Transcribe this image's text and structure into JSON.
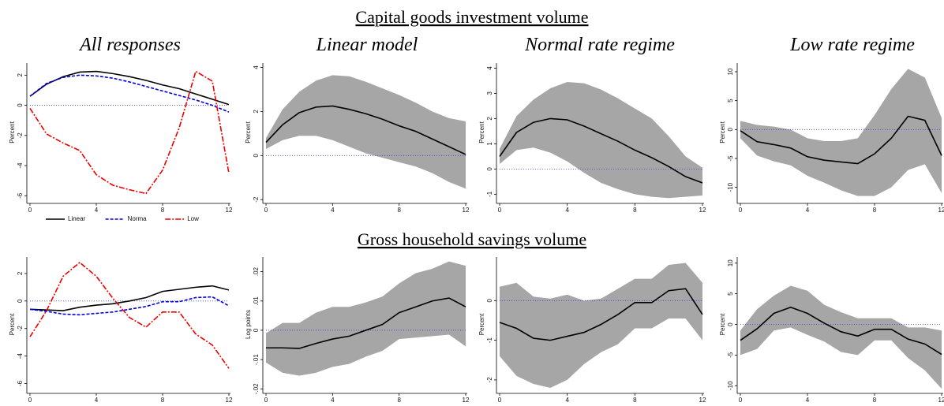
{
  "rows": [
    {
      "title": "Capital goods investment volume"
    },
    {
      "title": "Gross household savings volume"
    }
  ],
  "column_titles": [
    "All responses",
    "Linear model",
    "Normal rate regime",
    "Low rate regime"
  ],
  "chart_data": [
    {
      "type": "line",
      "ylabel": "Percent",
      "x": [
        0,
        1,
        2,
        3,
        4,
        5,
        6,
        7,
        8,
        9,
        10,
        11,
        12
      ],
      "xlim": [
        0,
        12
      ],
      "xticks": [
        0,
        4,
        8,
        12
      ],
      "ylim": [
        -6.4,
        2.8
      ],
      "yticks": [
        -6,
        -4,
        -2,
        0,
        2
      ],
      "hline": 0,
      "hline_color": "#3344dd",
      "legend": "bottom",
      "series": [
        {
          "name": "Linear",
          "color": "#000000",
          "dash": "solid",
          "values": [
            0.6,
            1.4,
            1.9,
            2.2,
            2.25,
            2.1,
            1.9,
            1.65,
            1.35,
            1.1,
            0.75,
            0.4,
            0.05
          ]
        },
        {
          "name": "Norma",
          "color": "#0000dd",
          "dash": "dash",
          "values": [
            0.6,
            1.45,
            1.85,
            2.0,
            1.95,
            1.8,
            1.55,
            1.25,
            0.95,
            0.65,
            0.35,
            0.0,
            -0.45
          ]
        },
        {
          "name": "Low",
          "color": "#ee0000",
          "dash": "dashdot",
          "values": [
            -0.2,
            -1.9,
            -2.5,
            -3.0,
            -4.6,
            -5.3,
            -5.6,
            -5.85,
            -4.3,
            -1.5,
            2.25,
            1.6,
            -4.5
          ]
        }
      ]
    },
    {
      "type": "band",
      "ylabel": "Percent",
      "x": [
        0,
        1,
        2,
        3,
        4,
        5,
        6,
        7,
        8,
        9,
        10,
        11,
        12
      ],
      "xlim": [
        0,
        12
      ],
      "xticks": [
        0,
        4,
        8,
        12
      ],
      "ylim": [
        -2.1,
        4.2
      ],
      "yticks": [
        -2,
        0,
        2,
        4
      ],
      "hline": 0,
      "hline_color": "#3344dd",
      "band": {
        "color": "#a6a6a6",
        "lower": [
          0.3,
          0.7,
          0.9,
          0.9,
          0.7,
          0.4,
          0.1,
          -0.1,
          -0.3,
          -0.5,
          -0.8,
          -1.2,
          -1.5
        ],
        "upper": [
          0.8,
          2.1,
          2.9,
          3.4,
          3.65,
          3.6,
          3.35,
          3.05,
          2.75,
          2.4,
          2.0,
          1.7,
          1.55
        ]
      },
      "series": [
        {
          "color": "#000000",
          "dash": "solid",
          "values": [
            0.6,
            1.4,
            1.95,
            2.2,
            2.25,
            2.1,
            1.9,
            1.65,
            1.35,
            1.1,
            0.75,
            0.4,
            0.05
          ]
        }
      ]
    },
    {
      "type": "band",
      "ylabel": "Percent",
      "x": [
        0,
        1,
        2,
        3,
        4,
        5,
        6,
        7,
        8,
        9,
        10,
        11,
        12
      ],
      "xlim": [
        0,
        12
      ],
      "xticks": [
        0,
        4,
        8,
        12
      ],
      "ylim": [
        -1.3,
        4.2
      ],
      "yticks": [
        -1,
        0,
        1,
        2,
        3,
        4
      ],
      "hline": 0,
      "hline_color": "#3344dd",
      "band": {
        "color": "#a6a6a6",
        "lower": [
          0.2,
          0.75,
          0.85,
          0.65,
          0.3,
          -0.15,
          -0.55,
          -0.8,
          -1.0,
          -1.1,
          -1.15,
          -1.1,
          -1.05
        ],
        "upper": [
          0.8,
          2.1,
          2.75,
          3.2,
          3.45,
          3.4,
          3.15,
          2.8,
          2.4,
          2.0,
          1.3,
          0.5,
          0.05
        ]
      },
      "series": [
        {
          "color": "#000000",
          "dash": "solid",
          "values": [
            0.5,
            1.45,
            1.85,
            2.0,
            1.95,
            1.7,
            1.4,
            1.1,
            0.75,
            0.45,
            0.1,
            -0.3,
            -0.55
          ]
        }
      ]
    },
    {
      "type": "band",
      "ylabel": "Percent",
      "x": [
        0,
        1,
        2,
        3,
        4,
        5,
        6,
        7,
        8,
        9,
        10,
        11,
        12
      ],
      "xlim": [
        0,
        12
      ],
      "xticks": [
        0,
        4,
        8,
        12
      ],
      "ylim": [
        -12.5,
        11.5
      ],
      "yticks": [
        -10,
        -5,
        0,
        5,
        10
      ],
      "hline": 0,
      "hline_color": "#3344dd",
      "band": {
        "color": "#a6a6a6",
        "lower": [
          -1.5,
          -4.5,
          -5.5,
          -6.2,
          -8,
          -9.2,
          -10.5,
          -11.5,
          -11.5,
          -10,
          -7,
          -6,
          -11
        ],
        "upper": [
          1.5,
          0.8,
          0.5,
          0,
          -1.5,
          -2,
          -2,
          -1.5,
          2.5,
          7,
          10.5,
          9,
          2
        ]
      },
      "series": [
        {
          "color": "#000000",
          "dash": "solid",
          "values": [
            -0.2,
            -2.1,
            -2.6,
            -3.2,
            -4.7,
            -5.3,
            -5.6,
            -5.9,
            -4.2,
            -1.5,
            2.3,
            1.6,
            -4.5
          ]
        }
      ]
    },
    {
      "type": "line",
      "ylabel": "Percent",
      "x": [
        0,
        1,
        2,
        3,
        4,
        5,
        6,
        7,
        8,
        9,
        10,
        11,
        12
      ],
      "xlim": [
        0,
        12
      ],
      "xticks": [
        0,
        4,
        8,
        12
      ],
      "ylim": [
        -6.6,
        3.2
      ],
      "yticks": [
        -6,
        -4,
        -2,
        0,
        2
      ],
      "hline": 0,
      "hline_color": "#3344dd",
      "legend": "bottom",
      "series": [
        {
          "name": "Linear",
          "color": "#000000",
          "dash": "solid",
          "values": [
            -0.6,
            -0.65,
            -0.7,
            -0.45,
            -0.3,
            -0.2,
            0.0,
            0.25,
            0.7,
            0.85,
            1.0,
            1.1,
            0.8
          ]
        },
        {
          "name": "Norma",
          "color": "#0000dd",
          "dash": "dash",
          "values": [
            -0.6,
            -0.75,
            -0.95,
            -1.0,
            -0.9,
            -0.8,
            -0.6,
            -0.4,
            -0.05,
            -0.05,
            0.25,
            0.3,
            -0.35
          ]
        },
        {
          "name": "Low",
          "color": "#ee0000",
          "dash": "dashdot",
          "values": [
            -2.6,
            -0.7,
            1.8,
            2.8,
            1.8,
            0.2,
            -1.2,
            -1.9,
            -0.8,
            -0.8,
            -2.4,
            -3.2,
            -4.9
          ]
        }
      ]
    },
    {
      "type": "band",
      "ylabel": "Log points",
      "x": [
        0,
        1,
        2,
        3,
        4,
        5,
        6,
        7,
        8,
        9,
        10,
        11,
        12
      ],
      "xlim": [
        0,
        12
      ],
      "xticks": [
        0,
        4,
        8,
        12
      ],
      "ylim": [
        -0.021,
        0.025
      ],
      "yticks": [
        {
          "value": -0.02,
          "label": "-.02"
        },
        {
          "value": -0.01,
          "label": "-.01"
        },
        0,
        {
          "value": 0.01,
          "label": ".01"
        },
        {
          "value": 0.02,
          "label": ".02"
        }
      ],
      "hline": 0,
      "hline_color": "#3344dd",
      "band": {
        "color": "#a6a6a6",
        "lower": [
          -0.011,
          -0.0145,
          -0.0155,
          -0.0145,
          -0.0125,
          -0.0115,
          -0.009,
          -0.007,
          -0.003,
          -0.0025,
          -0.002,
          -0.0015,
          -0.0055
        ],
        "upper": [
          -0.001,
          0.0025,
          0.0025,
          0.006,
          0.008,
          0.008,
          0.0095,
          0.0115,
          0.016,
          0.0195,
          0.021,
          0.0235,
          0.022
        ]
      },
      "series": [
        {
          "color": "#000000",
          "dash": "solid",
          "values": [
            -0.006,
            -0.006,
            -0.0062,
            -0.0045,
            -0.003,
            -0.002,
            0,
            0.002,
            0.006,
            0.008,
            0.01,
            0.011,
            0.008
          ]
        }
      ]
    },
    {
      "type": "band",
      "ylabel": "Percent",
      "x": [
        0,
        1,
        2,
        3,
        4,
        5,
        6,
        7,
        8,
        9,
        10,
        11,
        12
      ],
      "xlim": [
        0,
        12
      ],
      "xticks": [
        0,
        4,
        8,
        12
      ],
      "ylim": [
        -2.3,
        1.1
      ],
      "yticks": [
        -2,
        -1,
        0
      ],
      "hline": 0,
      "hline_color": "#3344dd",
      "band": {
        "color": "#a6a6a6",
        "lower": [
          -1.4,
          -1.9,
          -2.1,
          -2.2,
          -2.0,
          -1.6,
          -1.3,
          -1.1,
          -0.7,
          -0.7,
          -0.45,
          -0.45,
          -1.0
        ],
        "upper": [
          0.35,
          0.45,
          0.1,
          0.05,
          0.15,
          0.0,
          0.05,
          0.3,
          0.55,
          0.55,
          0.9,
          0.95,
          0.45
        ]
      },
      "series": [
        {
          "color": "#000000",
          "dash": "solid",
          "values": [
            -0.55,
            -0.7,
            -0.95,
            -1.0,
            -0.9,
            -0.8,
            -0.6,
            -0.35,
            -0.05,
            -0.05,
            0.25,
            0.3,
            -0.35
          ]
        }
      ]
    },
    {
      "type": "band",
      "ylabel": "Percent",
      "x": [
        0,
        1,
        2,
        3,
        4,
        5,
        6,
        7,
        8,
        9,
        10,
        11,
        12
      ],
      "xlim": [
        0,
        12
      ],
      "xticks": [
        0,
        4,
        8,
        12
      ],
      "ylim": [
        -11,
        11
      ],
      "yticks": [
        -10,
        -5,
        0,
        5,
        10
      ],
      "hline": 0,
      "hline_color": "#3344dd",
      "band": {
        "color": "#a6a6a6",
        "lower": [
          -5,
          -4,
          -1,
          -0.5,
          -1.7,
          -2.8,
          -4.5,
          -5,
          -2.6,
          -2.6,
          -5.5,
          -7.5,
          -10.5
        ],
        "upper": [
          -1,
          2.5,
          4.7,
          6.3,
          5.5,
          3.2,
          2,
          1,
          1,
          1,
          -0.5,
          -0.5,
          -1
        ]
      },
      "series": [
        {
          "color": "#000000",
          "dash": "solid",
          "values": [
            -2.6,
            -0.7,
            1.8,
            2.8,
            1.8,
            0.2,
            -1.2,
            -1.9,
            -0.8,
            -0.8,
            -2.4,
            -3.2,
            -4.9
          ]
        }
      ]
    }
  ]
}
